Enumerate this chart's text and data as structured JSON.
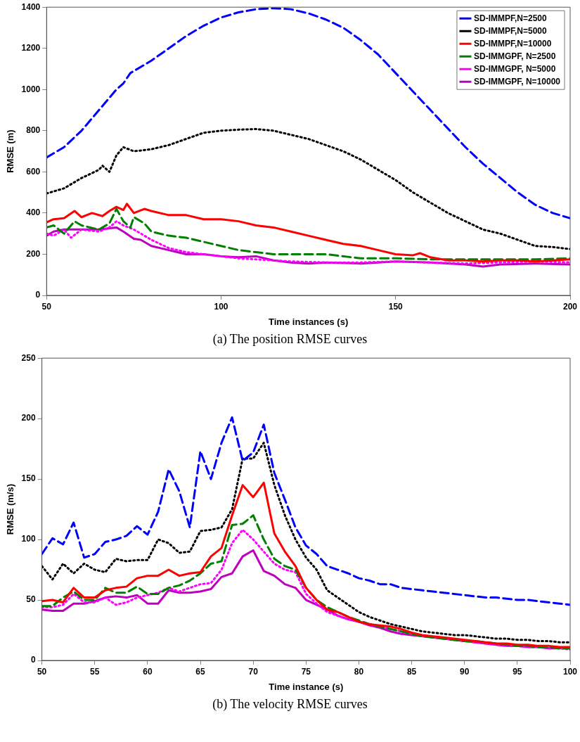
{
  "chart_data": [
    {
      "type": "line",
      "title": "(a)  The position RMSE curves",
      "xlabel": "Time instances (s)",
      "ylabel": "RMSE (m)",
      "xlim": [
        50,
        200
      ],
      "ylim": [
        0,
        1400
      ],
      "xticks": [
        50,
        100,
        150,
        200
      ],
      "yticks": [
        0,
        200,
        400,
        600,
        800,
        1000,
        1200,
        1400
      ],
      "grid": false,
      "legend": "top right",
      "series": [
        {
          "name": "SD-IMMPF,N=2500",
          "color": "#0000ff",
          "line_style": "dashed",
          "x": [
            50,
            55,
            60,
            65,
            70,
            72,
            74,
            80,
            85,
            90,
            95,
            100,
            105,
            110,
            115,
            120,
            125,
            130,
            135,
            140,
            145,
            150,
            155,
            160,
            165,
            170,
            175,
            180,
            185,
            190,
            195,
            200
          ],
          "values": [
            670,
            720,
            800,
            900,
            1000,
            1030,
            1080,
            1140,
            1200,
            1260,
            1310,
            1350,
            1375,
            1390,
            1395,
            1390,
            1370,
            1340,
            1300,
            1240,
            1170,
            1080,
            990,
            900,
            810,
            720,
            640,
            570,
            500,
            440,
            400,
            375
          ]
        },
        {
          "name": "SD-IMMPF,N=5000",
          "color": "#000000",
          "line_style": "dotted",
          "x": [
            50,
            55,
            60,
            65,
            66,
            68,
            70,
            72,
            75,
            80,
            85,
            90,
            95,
            100,
            105,
            110,
            115,
            120,
            125,
            130,
            135,
            140,
            145,
            150,
            155,
            160,
            165,
            170,
            175,
            180,
            185,
            190,
            195,
            200
          ],
          "values": [
            495,
            520,
            570,
            610,
            630,
            600,
            680,
            720,
            700,
            710,
            730,
            760,
            790,
            800,
            805,
            808,
            800,
            780,
            760,
            730,
            700,
            660,
            610,
            560,
            500,
            450,
            400,
            360,
            320,
            300,
            270,
            240,
            235,
            225
          ]
        },
        {
          "name": "SD-IMMPF,N=10000",
          "color": "#ff0000",
          "line_style": "solid",
          "x": [
            50,
            52,
            55,
            58,
            60,
            63,
            66,
            68,
            70,
            72,
            73,
            75,
            78,
            80,
            85,
            90,
            95,
            100,
            105,
            110,
            115,
            120,
            125,
            130,
            135,
            140,
            145,
            150,
            155,
            157,
            160,
            165,
            170,
            175,
            180,
            185,
            190,
            195,
            200
          ],
          "values": [
            355,
            370,
            375,
            410,
            380,
            400,
            385,
            410,
            430,
            415,
            445,
            400,
            420,
            410,
            390,
            390,
            370,
            370,
            360,
            340,
            330,
            310,
            290,
            270,
            250,
            240,
            220,
            200,
            195,
            205,
            185,
            170,
            170,
            165,
            170,
            170,
            165,
            170,
            175
          ]
        },
        {
          "name": "SD-IMMGPF, N=2500",
          "color": "#008000",
          "line_style": "dashed",
          "x": [
            50,
            52,
            55,
            58,
            60,
            65,
            68,
            70,
            72,
            74,
            75,
            78,
            80,
            85,
            90,
            95,
            100,
            105,
            110,
            115,
            120,
            130,
            140,
            150,
            160,
            170,
            180,
            190,
            200
          ],
          "values": [
            330,
            340,
            300,
            360,
            340,
            320,
            350,
            420,
            360,
            330,
            380,
            350,
            310,
            290,
            280,
            260,
            240,
            220,
            210,
            200,
            200,
            200,
            180,
            180,
            175,
            175,
            175,
            175,
            180
          ]
        },
        {
          "name": "SD-IMMGPF, N=5000",
          "color": "#ff00ff",
          "line_style": "dotted",
          "x": [
            50,
            52,
            55,
            57,
            60,
            65,
            68,
            70,
            72,
            75,
            78,
            80,
            85,
            90,
            95,
            100,
            105,
            110,
            120,
            130,
            140,
            150,
            160,
            170,
            180,
            190,
            200
          ],
          "values": [
            300,
            290,
            320,
            280,
            320,
            310,
            330,
            360,
            340,
            320,
            290,
            270,
            230,
            210,
            200,
            190,
            180,
            175,
            165,
            160,
            160,
            165,
            160,
            155,
            160,
            165,
            160
          ]
        },
        {
          "name": "SD-IMMGPF, N=10000",
          "color": "#bf00bf",
          "line_style": "solid",
          "x": [
            50,
            52,
            55,
            60,
            65,
            70,
            72,
            75,
            77,
            80,
            85,
            90,
            95,
            100,
            105,
            110,
            115,
            120,
            125,
            130,
            140,
            150,
            160,
            170,
            175,
            180,
            190,
            200
          ],
          "values": [
            290,
            310,
            320,
            320,
            320,
            330,
            310,
            275,
            270,
            240,
            220,
            200,
            200,
            190,
            185,
            190,
            170,
            160,
            155,
            160,
            155,
            165,
            160,
            150,
            140,
            150,
            155,
            150
          ]
        }
      ]
    },
    {
      "type": "line",
      "title": "(b)  The velocity RMSE curves",
      "xlabel": "Time instance (s)",
      "ylabel": "RMSE (m/s)",
      "xlim": [
        50,
        100
      ],
      "ylim": [
        0,
        250
      ],
      "xticks": [
        50,
        55,
        60,
        65,
        70,
        75,
        80,
        85,
        90,
        95,
        100
      ],
      "yticks": [
        0,
        50,
        100,
        150,
        200,
        250
      ],
      "grid": false,
      "x": [
        50,
        51,
        52,
        53,
        54,
        55,
        56,
        57,
        58,
        59,
        60,
        61,
        62,
        63,
        64,
        65,
        66,
        67,
        68,
        69,
        70,
        71,
        72,
        73,
        74,
        75,
        76,
        77,
        78,
        79,
        80,
        81,
        82,
        83,
        84,
        85,
        86,
        87,
        88,
        89,
        90,
        91,
        92,
        93,
        94,
        95,
        96,
        97,
        98,
        99,
        100
      ],
      "series": [
        {
          "color": "#0000ff",
          "line_style": "dashed",
          "values": [
            88,
            101,
            96,
            114,
            85,
            88,
            98,
            100,
            103,
            111,
            104,
            123,
            158,
            140,
            110,
            173,
            150,
            180,
            201,
            165,
            172,
            195,
            155,
            133,
            110,
            95,
            88,
            78,
            75,
            72,
            68,
            66,
            63,
            63,
            60,
            59,
            58,
            57,
            56,
            55,
            54,
            53,
            52,
            52,
            51,
            50,
            50,
            49,
            48,
            47,
            46
          ]
        },
        {
          "color": "#000000",
          "line_style": "dotted",
          "values": [
            78,
            67,
            80,
            72,
            80,
            75,
            73,
            84,
            82,
            83,
            83,
            100,
            97,
            89,
            90,
            107,
            108,
            110,
            125,
            167,
            167,
            180,
            145,
            120,
            100,
            85,
            75,
            58,
            52,
            46,
            40,
            36,
            33,
            30,
            28,
            26,
            24,
            23,
            22,
            21,
            21,
            20,
            19,
            18,
            18,
            17,
            17,
            16,
            16,
            15,
            15
          ]
        },
        {
          "color": "#ff0000",
          "line_style": "solid",
          "values": [
            49,
            50,
            48,
            60,
            52,
            52,
            58,
            60,
            61,
            68,
            70,
            70,
            75,
            70,
            72,
            73,
            86,
            93,
            120,
            145,
            135,
            147,
            105,
            90,
            78,
            60,
            50,
            42,
            40,
            36,
            32,
            30,
            29,
            28,
            26,
            23,
            21,
            20,
            19,
            18,
            17,
            16,
            15,
            14,
            14,
            13,
            13,
            12,
            12,
            11,
            11
          ]
        },
        {
          "color": "#008000",
          "line_style": "dashed",
          "values": [
            45,
            45,
            52,
            57,
            50,
            50,
            60,
            56,
            56,
            61,
            55,
            55,
            60,
            62,
            66,
            72,
            80,
            82,
            112,
            113,
            120,
            100,
            84,
            78,
            75,
            60,
            50,
            44,
            40,
            36,
            33,
            30,
            28,
            26,
            24,
            22,
            20,
            19,
            18,
            17,
            16,
            16,
            15,
            14,
            13,
            12,
            12,
            11,
            11,
            10,
            10
          ]
        },
        {
          "color": "#ff00ff",
          "line_style": "dotted",
          "values": [
            44,
            44,
            46,
            55,
            48,
            48,
            52,
            46,
            48,
            52,
            54,
            56,
            60,
            57,
            60,
            63,
            64,
            75,
            97,
            108,
            100,
            90,
            80,
            75,
            73,
            55,
            47,
            40,
            37,
            34,
            32,
            30,
            28,
            26,
            24,
            22,
            20,
            19,
            18,
            17,
            16,
            15,
            14,
            13,
            12,
            12,
            11,
            11,
            10,
            10,
            9
          ]
        },
        {
          "color": "#bf00bf",
          "line_style": "solid",
          "values": [
            42,
            41,
            41,
            47,
            47,
            49,
            52,
            53,
            52,
            54,
            47,
            47,
            58,
            56,
            56,
            57,
            59,
            69,
            72,
            86,
            91,
            74,
            70,
            63,
            60,
            50,
            46,
            42,
            37,
            34,
            32,
            29,
            27,
            24,
            22,
            21,
            20,
            19,
            18,
            17,
            16,
            15,
            14,
            13,
            12,
            12,
            11,
            11,
            10,
            10,
            10
          ]
        }
      ]
    }
  ]
}
